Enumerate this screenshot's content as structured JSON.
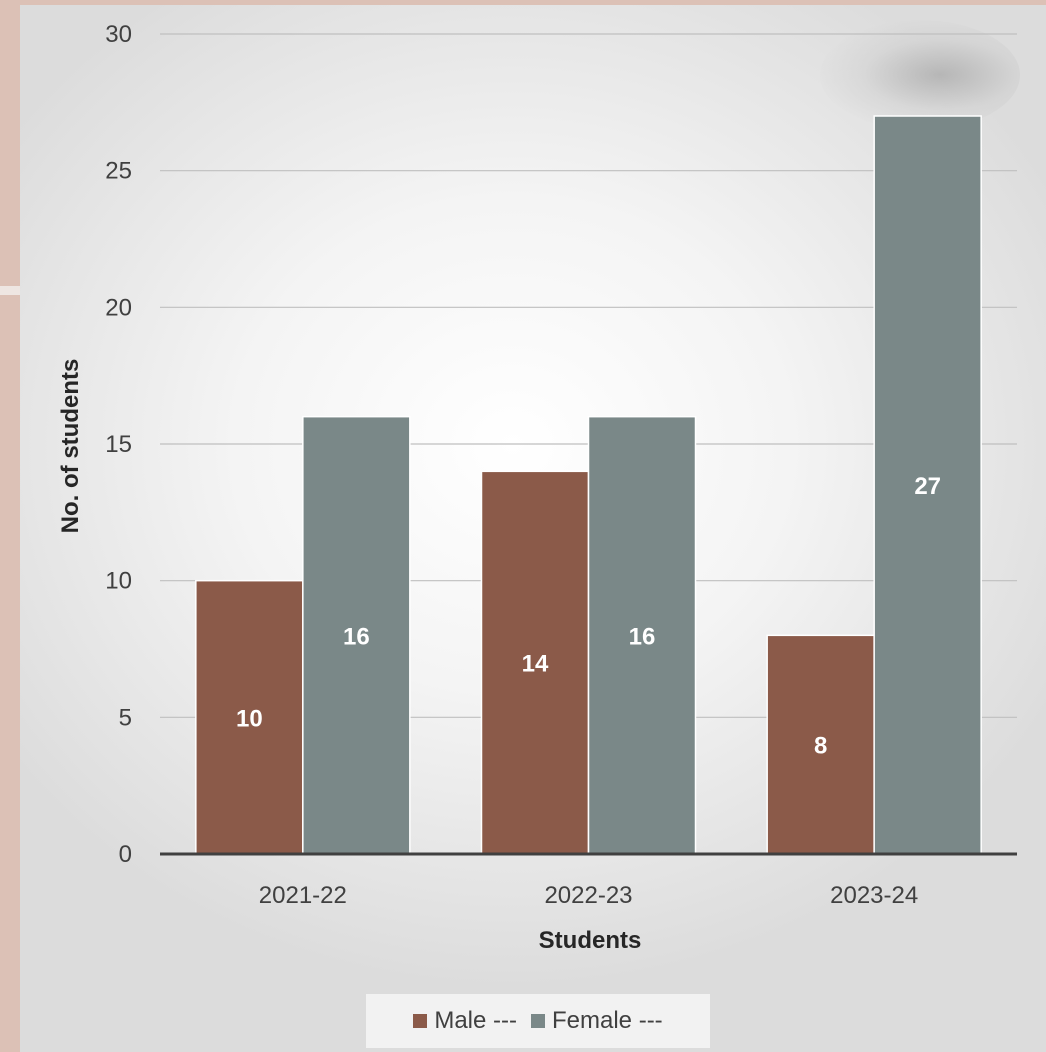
{
  "chart_data": {
    "type": "bar",
    "title": "",
    "xlabel": "Students",
    "ylabel": "No. of students",
    "categories": [
      "2021-22",
      "2022-23",
      "2023-24"
    ],
    "series": [
      {
        "name": "Male ---",
        "values": [
          10,
          14,
          8
        ],
        "color": "#8b5a49"
      },
      {
        "name": "Female ---",
        "values": [
          16,
          16,
          27
        ],
        "color": "#7a8888"
      }
    ],
    "ylim": [
      0,
      30
    ],
    "yticks": [
      0,
      5,
      10,
      15,
      20,
      25,
      30
    ],
    "grid": true,
    "legend_position": "bottom"
  }
}
